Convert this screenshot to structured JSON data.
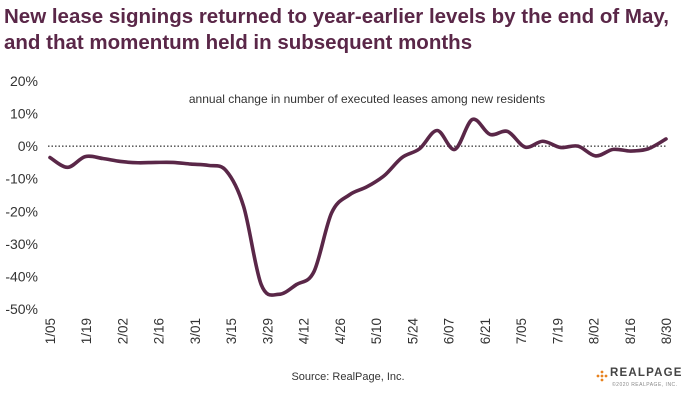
{
  "chart_data": {
    "type": "line",
    "title": "New lease signings returned to year-earlier levels by the end of May, and that momentum held in subsequent months",
    "subtitle": "annual change in number of executed leases among new residents",
    "source": "Source: RealPage, Inc.",
    "xlabel": "",
    "ylabel": "",
    "ylim": [
      -50,
      20
    ],
    "yticks": [
      20,
      10,
      0,
      -10,
      -20,
      -30,
      -40,
      -50
    ],
    "ytick_labels": [
      "20%",
      "10%",
      "0%",
      "-10%",
      "-20%",
      "-30%",
      "-40%",
      "-50%"
    ],
    "xtick_labels": [
      "1/05",
      "1/19",
      "2/02",
      "2/16",
      "3/01",
      "3/15",
      "3/29",
      "4/12",
      "4/26",
      "5/10",
      "5/24",
      "6/07",
      "6/21",
      "7/05",
      "7/19",
      "8/02",
      "8/16",
      "8/30"
    ],
    "zero_line": "dotted",
    "grid": false,
    "line_color": "#5a2748",
    "series": [
      {
        "values": [
          -3.5,
          -6.5,
          -3.2,
          -3.8,
          -4.7,
          -5.1,
          -5.0,
          -5.0,
          -5.5,
          -5.9,
          -7.5,
          -18.5,
          -42.5,
          -45.5,
          -42.5,
          -38.5,
          -20.5,
          -15.0,
          -12.5,
          -9.0,
          -3.5,
          -0.8,
          4.8,
          -1.0,
          8.2,
          3.6,
          4.5,
          -0.3,
          1.5,
          -0.4,
          0.0,
          -3.0,
          -1.0,
          -1.5,
          -0.8,
          2.2
        ]
      }
    ]
  },
  "logo": {
    "name": "REALPAGE",
    "copyright": "©2020 REALPAGE, INC."
  },
  "colors": {
    "accent": "#5a2748",
    "logo_orange": "#e8821e",
    "logo_dark": "#444444"
  }
}
